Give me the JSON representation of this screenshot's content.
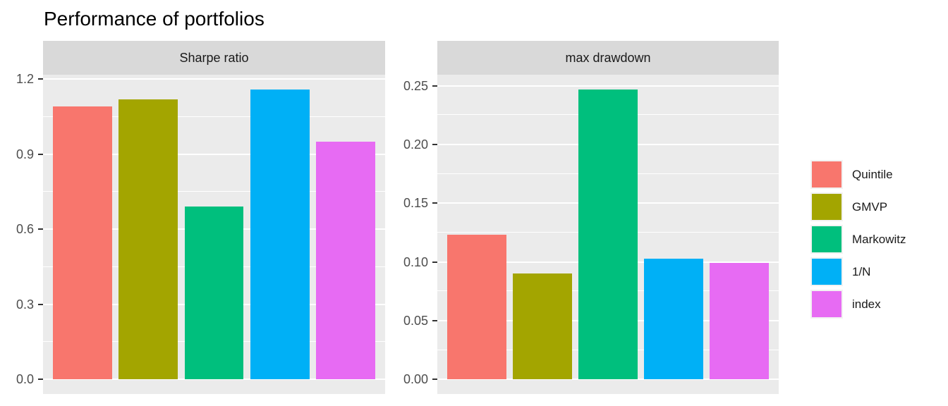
{
  "title": "Performance of portfolios",
  "chart_data": {
    "type": "bar",
    "title": "Performance of portfolios",
    "categories": [
      "Quintile",
      "GMVP",
      "Markowitz",
      "1/N",
      "index"
    ],
    "palette": [
      "#F8766D",
      "#A3A500",
      "#00BF7D",
      "#00B0F6",
      "#E76BF3"
    ],
    "facets": [
      {
        "label": "Sharpe ratio",
        "values": [
          1.09,
          1.12,
          0.69,
          1.16,
          0.95
        ],
        "ytick_labels": [
          "0.0",
          "0.3",
          "0.6",
          "0.9",
          "1.2"
        ],
        "ytick_values": [
          0,
          0.3,
          0.6,
          0.9,
          1.2
        ],
        "ylim": [
          0,
          1.2
        ]
      },
      {
        "label": "max drawdown",
        "values": [
          0.123,
          0.09,
          0.247,
          0.103,
          0.099
        ],
        "ytick_labels": [
          "0.00",
          "0.05",
          "0.10",
          "0.15",
          "0.20",
          "0.25"
        ],
        "ytick_values": [
          0,
          0.05,
          0.1,
          0.15,
          0.2,
          0.25
        ],
        "ylim": [
          0,
          0.25
        ]
      }
    ],
    "legend": {
      "position": "right",
      "entries": [
        {
          "label": "Quintile",
          "color": "#F8766D"
        },
        {
          "label": "GMVP",
          "color": "#A3A500"
        },
        {
          "label": "Markowitz",
          "color": "#00BF7D"
        },
        {
          "label": "1/N",
          "color": "#00B0F6"
        },
        {
          "label": "index",
          "color": "#E76BF3"
        }
      ]
    },
    "grid": true,
    "xlabel": "",
    "ylabel": "",
    "colors": {
      "panel_bg": "#EBEBEB",
      "strip_bg": "#D9D9D9",
      "grid": "#FFFFFF",
      "axis_text": "#4D4D4D",
      "tick_mark": "#333333",
      "title_text": "#000000"
    }
  }
}
